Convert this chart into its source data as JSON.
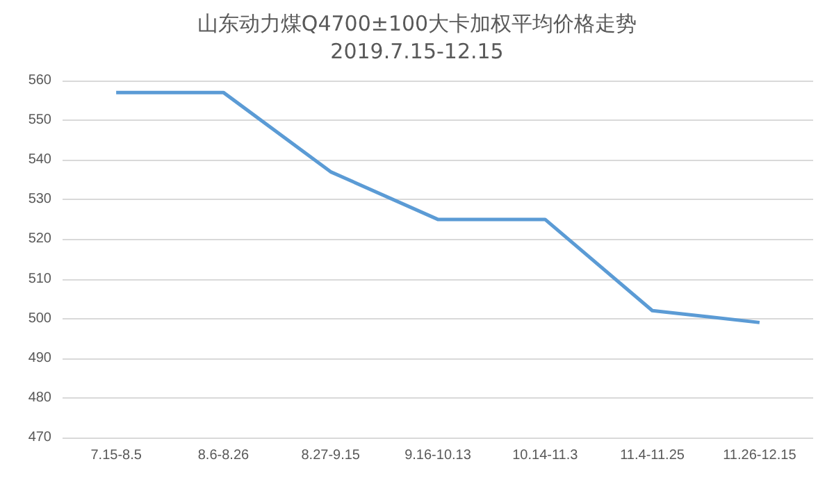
{
  "chart_data": {
    "type": "line",
    "title": "山东动力煤Q4700±100大卡加权平均价格走势2019.7.15-12.15",
    "categories": [
      "7.15-8.5",
      "8.6-8.26",
      "8.27-9.15",
      "9.16-10.13",
      "10.14-11.3",
      "11.4-11.25",
      "11.26-12.15"
    ],
    "series": [
      {
        "color": "#5b9bd5",
        "values": [
          557,
          557,
          537,
          525,
          525,
          502,
          499
        ]
      }
    ],
    "ylim": [
      470,
      560
    ],
    "yticks": [
      470,
      480,
      490,
      500,
      510,
      520,
      530,
      540,
      550,
      560
    ],
    "grid": "y",
    "marker": "none"
  }
}
